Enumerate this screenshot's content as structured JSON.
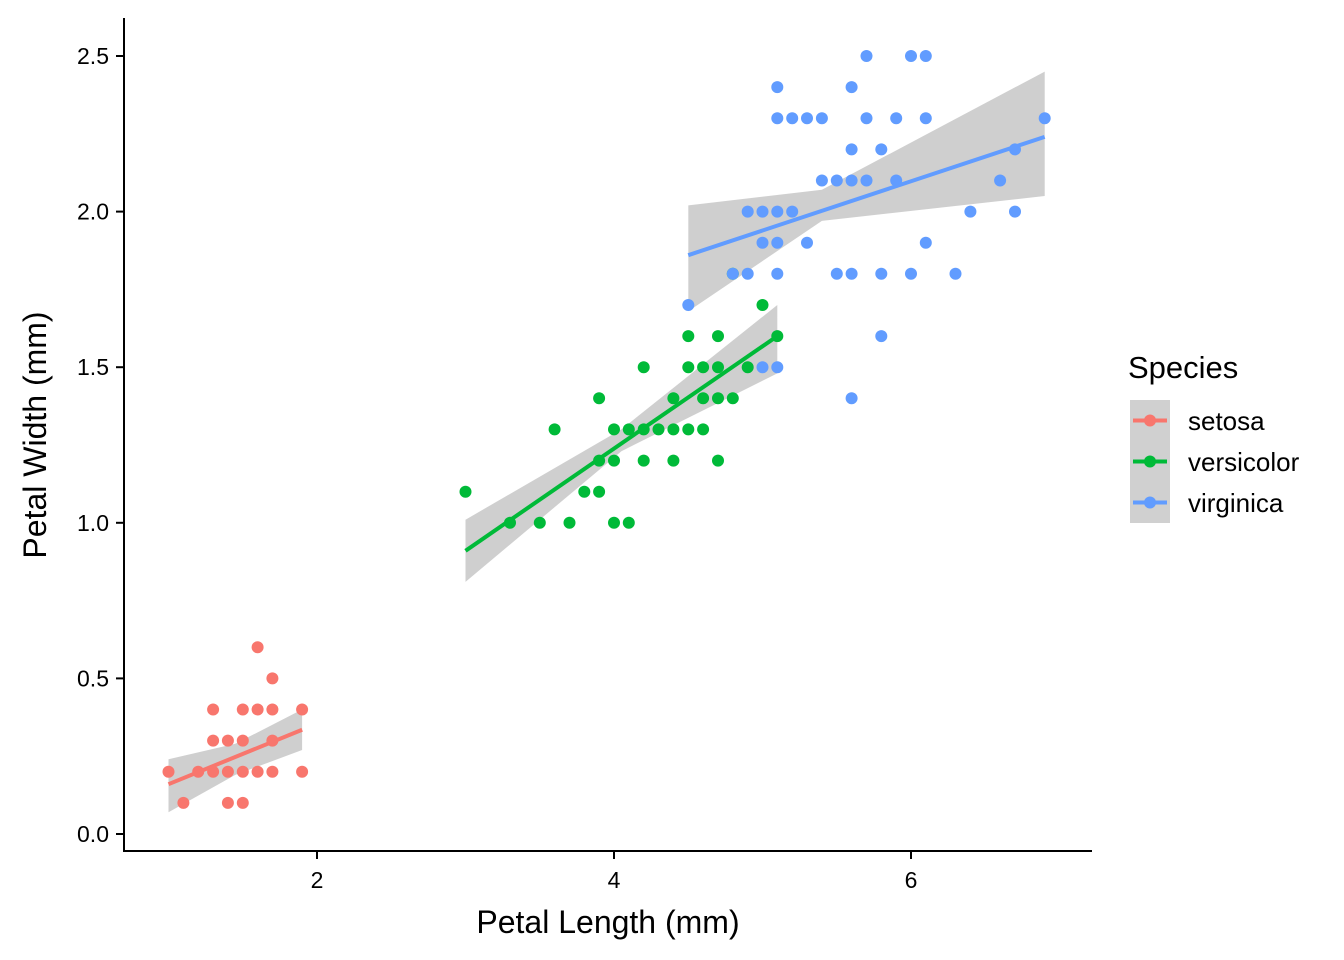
{
  "chart_data": {
    "type": "scatter",
    "xlabel": "Petal Length (mm)",
    "ylabel": "Petal Width (mm)",
    "xlim": [
      0.7,
      7.2
    ],
    "ylim": [
      -0.05,
      2.62
    ],
    "x_ticks": [
      2,
      4,
      6
    ],
    "x_tick_labels": [
      "2",
      "4",
      "6"
    ],
    "y_ticks": [
      0.0,
      0.5,
      1.0,
      1.5,
      2.0,
      2.5
    ],
    "y_tick_labels": [
      "0.0",
      "0.5",
      "1.0",
      "1.5",
      "2.0",
      "2.5"
    ],
    "grid": false,
    "legend": {
      "title": "Species",
      "placement": "right",
      "entries": [
        "setosa",
        "versicolor",
        "virginica"
      ]
    },
    "series": [
      {
        "name": "setosa",
        "color": "#F8766D",
        "points": [
          [
            1.0,
            0.2
          ],
          [
            1.1,
            0.1
          ],
          [
            1.2,
            0.2
          ],
          [
            1.3,
            0.2
          ],
          [
            1.3,
            0.3
          ],
          [
            1.3,
            0.4
          ],
          [
            1.4,
            0.1
          ],
          [
            1.4,
            0.2
          ],
          [
            1.4,
            0.3
          ],
          [
            1.5,
            0.1
          ],
          [
            1.5,
            0.2
          ],
          [
            1.5,
            0.3
          ],
          [
            1.5,
            0.4
          ],
          [
            1.6,
            0.2
          ],
          [
            1.6,
            0.4
          ],
          [
            1.6,
            0.6
          ],
          [
            1.7,
            0.2
          ],
          [
            1.7,
            0.3
          ],
          [
            1.7,
            0.4
          ],
          [
            1.7,
            0.5
          ],
          [
            1.9,
            0.2
          ],
          [
            1.9,
            0.4
          ]
        ],
        "fit": {
          "x": [
            1.0,
            1.9
          ],
          "y": [
            0.16,
            0.335
          ]
        },
        "band": {
          "x": [
            1.0,
            1.45,
            1.9
          ],
          "lower": [
            0.07,
            0.19,
            0.27
          ],
          "upper": [
            0.24,
            0.29,
            0.4
          ]
        }
      },
      {
        "name": "versicolor",
        "color": "#00BA38",
        "points": [
          [
            3.0,
            1.1
          ],
          [
            3.3,
            1.0
          ],
          [
            3.5,
            1.0
          ],
          [
            3.6,
            1.3
          ],
          [
            3.7,
            1.0
          ],
          [
            3.8,
            1.1
          ],
          [
            3.9,
            1.1
          ],
          [
            3.9,
            1.2
          ],
          [
            3.9,
            1.4
          ],
          [
            4.0,
            1.0
          ],
          [
            4.0,
            1.2
          ],
          [
            4.0,
            1.3
          ],
          [
            4.1,
            1.0
          ],
          [
            4.1,
            1.3
          ],
          [
            4.2,
            1.2
          ],
          [
            4.2,
            1.3
          ],
          [
            4.2,
            1.5
          ],
          [
            4.3,
            1.3
          ],
          [
            4.4,
            1.2
          ],
          [
            4.4,
            1.3
          ],
          [
            4.4,
            1.4
          ],
          [
            4.5,
            1.3
          ],
          [
            4.5,
            1.5
          ],
          [
            4.5,
            1.6
          ],
          [
            4.6,
            1.3
          ],
          [
            4.6,
            1.4
          ],
          [
            4.6,
            1.5
          ],
          [
            4.7,
            1.2
          ],
          [
            4.7,
            1.4
          ],
          [
            4.7,
            1.5
          ],
          [
            4.7,
            1.6
          ],
          [
            4.8,
            1.4
          ],
          [
            4.8,
            1.8
          ],
          [
            4.9,
            1.5
          ],
          [
            5.0,
            1.7
          ],
          [
            5.1,
            1.6
          ]
        ],
        "fit": {
          "x": [
            3.0,
            5.1
          ],
          "y": [
            0.91,
            1.6
          ]
        },
        "band": {
          "x": [
            3.0,
            4.05,
            5.1
          ],
          "lower": [
            0.81,
            1.23,
            1.48
          ],
          "upper": [
            1.01,
            1.3,
            1.7
          ]
        }
      },
      {
        "name": "virginica",
        "color": "#619CFF",
        "points": [
          [
            4.5,
            1.7
          ],
          [
            4.8,
            1.8
          ],
          [
            4.9,
            1.8
          ],
          [
            4.9,
            2.0
          ],
          [
            5.0,
            1.5
          ],
          [
            5.0,
            1.9
          ],
          [
            5.0,
            2.0
          ],
          [
            5.1,
            1.5
          ],
          [
            5.1,
            1.8
          ],
          [
            5.1,
            1.9
          ],
          [
            5.1,
            2.0
          ],
          [
            5.1,
            2.3
          ],
          [
            5.1,
            2.4
          ],
          [
            5.2,
            2.0
          ],
          [
            5.2,
            2.3
          ],
          [
            5.3,
            1.9
          ],
          [
            5.3,
            2.3
          ],
          [
            5.4,
            2.1
          ],
          [
            5.4,
            2.3
          ],
          [
            5.5,
            1.8
          ],
          [
            5.5,
            2.1
          ],
          [
            5.6,
            1.4
          ],
          [
            5.6,
            1.8
          ],
          [
            5.6,
            2.1
          ],
          [
            5.6,
            2.2
          ],
          [
            5.6,
            2.4
          ],
          [
            5.7,
            2.1
          ],
          [
            5.7,
            2.3
          ],
          [
            5.7,
            2.5
          ],
          [
            5.8,
            1.6
          ],
          [
            5.8,
            1.8
          ],
          [
            5.8,
            2.2
          ],
          [
            5.9,
            2.1
          ],
          [
            5.9,
            2.3
          ],
          [
            6.0,
            1.8
          ],
          [
            6.0,
            2.5
          ],
          [
            6.1,
            1.9
          ],
          [
            6.1,
            2.3
          ],
          [
            6.1,
            2.5
          ],
          [
            6.3,
            1.8
          ],
          [
            6.4,
            2.0
          ],
          [
            6.6,
            2.1
          ],
          [
            6.7,
            2.0
          ],
          [
            6.7,
            2.2
          ],
          [
            6.9,
            2.3
          ]
        ],
        "fit": {
          "x": [
            4.5,
            6.9
          ],
          "y": [
            1.86,
            2.24
          ]
        },
        "band": {
          "x": [
            4.5,
            5.4,
            6.9
          ],
          "lower": [
            1.68,
            1.97,
            2.05
          ],
          "upper": [
            2.02,
            2.07,
            2.45
          ]
        }
      }
    ]
  }
}
